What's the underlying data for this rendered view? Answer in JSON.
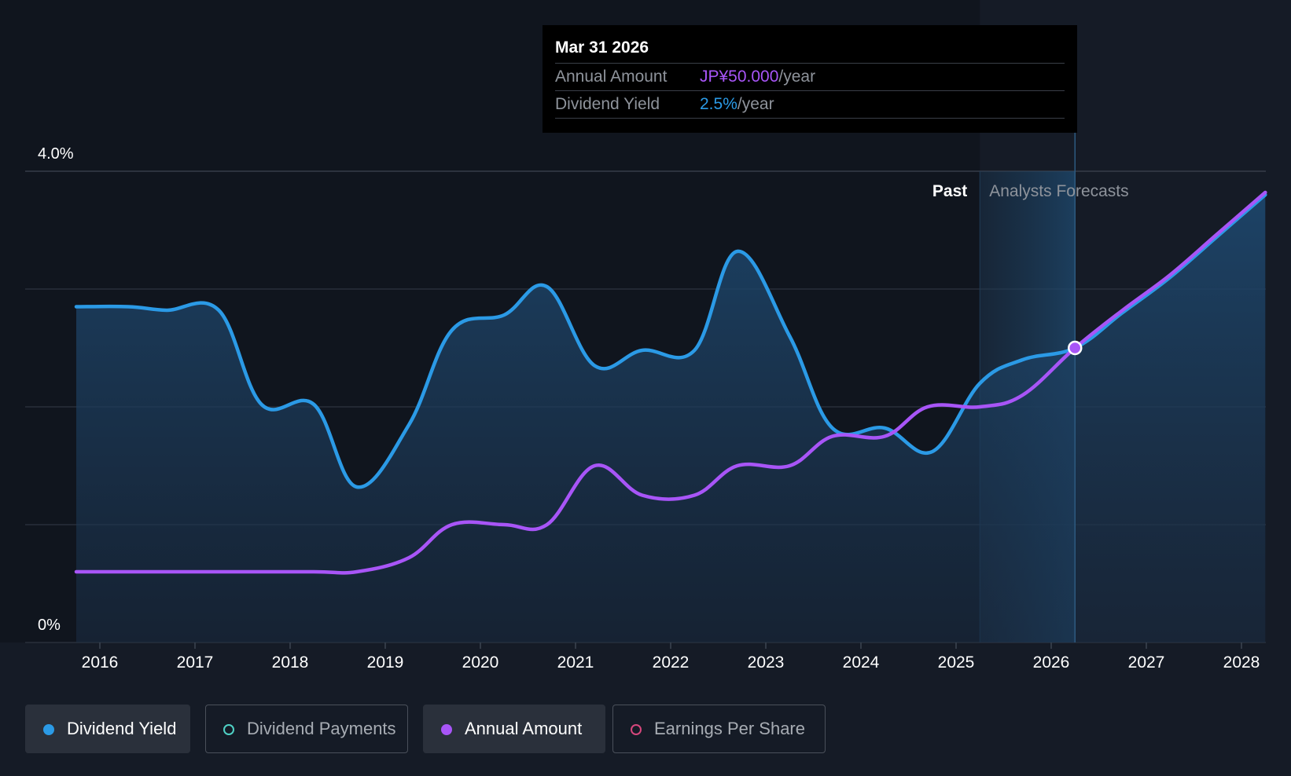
{
  "tooltip": {
    "date": "Mar 31 2026",
    "annual_amount_label": "Annual Amount",
    "annual_amount_value": "JP¥50.000",
    "annual_amount_unit": "/year",
    "dividend_yield_label": "Dividend Yield",
    "dividend_yield_value": "2.5%",
    "dividend_yield_unit": "/year"
  },
  "legend": [
    {
      "label": "Dividend Yield",
      "color": "#2b9ae6",
      "active": true
    },
    {
      "label": "Dividend Payments",
      "color": "#4fd1c5",
      "active": false
    },
    {
      "label": "Annual Amount",
      "color": "#a855f7",
      "active": true
    },
    {
      "label": "Earnings Per Share",
      "color": "#d6477c",
      "active": false
    }
  ],
  "colors": {
    "background": "#151b26",
    "past_background": "#10151e",
    "grid": "#2e3440",
    "yield": "#2b9ae6",
    "annual": "#a855f7",
    "forecast_band": "#1b3a57"
  },
  "chart_data": {
    "type": "line",
    "y_labels": [
      "4.0%",
      "0%"
    ],
    "ylim": [
      0,
      4.0
    ],
    "y_ticks": [
      0,
      1,
      2,
      3,
      4
    ],
    "x_ticks": [
      "2016",
      "2017",
      "2018",
      "2019",
      "2020",
      "2021",
      "2022",
      "2023",
      "2024",
      "2025",
      "2026",
      "2027",
      "2028"
    ],
    "x_range": [
      2015.75,
      2028.25
    ],
    "past_label": "Past",
    "forecast_label": "Analysts Forecasts",
    "forecast_start": 2025.25,
    "highlight_x": 2026.25,
    "series": [
      {
        "name": "Dividend Yield",
        "unit": "%",
        "points": [
          [
            2015.75,
            2.85
          ],
          [
            2016.3,
            2.85
          ],
          [
            2016.7,
            2.82
          ],
          [
            2017.25,
            2.82
          ],
          [
            2017.7,
            2.02
          ],
          [
            2018.25,
            2.02
          ],
          [
            2018.7,
            1.32
          ],
          [
            2019.25,
            1.85
          ],
          [
            2019.7,
            2.65
          ],
          [
            2020.25,
            2.78
          ],
          [
            2020.7,
            3.02
          ],
          [
            2021.2,
            2.35
          ],
          [
            2021.7,
            2.48
          ],
          [
            2022.25,
            2.48
          ],
          [
            2022.7,
            3.32
          ],
          [
            2023.25,
            2.6
          ],
          [
            2023.7,
            1.82
          ],
          [
            2024.25,
            1.82
          ],
          [
            2024.75,
            1.62
          ],
          [
            2025.25,
            2.2
          ],
          [
            2025.7,
            2.4
          ],
          [
            2026.25,
            2.5
          ],
          [
            2026.75,
            2.8
          ],
          [
            2027.25,
            3.1
          ],
          [
            2027.75,
            3.45
          ],
          [
            2028.25,
            3.8
          ]
        ]
      },
      {
        "name": "Annual Amount",
        "unit": "JP¥",
        "points": [
          [
            2015.75,
            0.6
          ],
          [
            2016.3,
            0.6
          ],
          [
            2017.25,
            0.6
          ],
          [
            2018.25,
            0.6
          ],
          [
            2018.7,
            0.6
          ],
          [
            2019.25,
            0.72
          ],
          [
            2019.7,
            1.0
          ],
          [
            2020.25,
            1.0
          ],
          [
            2020.7,
            1.0
          ],
          [
            2021.2,
            1.5
          ],
          [
            2021.7,
            1.25
          ],
          [
            2022.25,
            1.25
          ],
          [
            2022.7,
            1.5
          ],
          [
            2023.25,
            1.5
          ],
          [
            2023.7,
            1.75
          ],
          [
            2024.25,
            1.75
          ],
          [
            2024.7,
            2.0
          ],
          [
            2025.25,
            2.0
          ],
          [
            2025.7,
            2.1
          ],
          [
            2026.25,
            2.5
          ],
          [
            2026.75,
            2.82
          ],
          [
            2027.25,
            3.12
          ],
          [
            2027.75,
            3.47
          ],
          [
            2028.25,
            3.82
          ]
        ]
      }
    ]
  }
}
